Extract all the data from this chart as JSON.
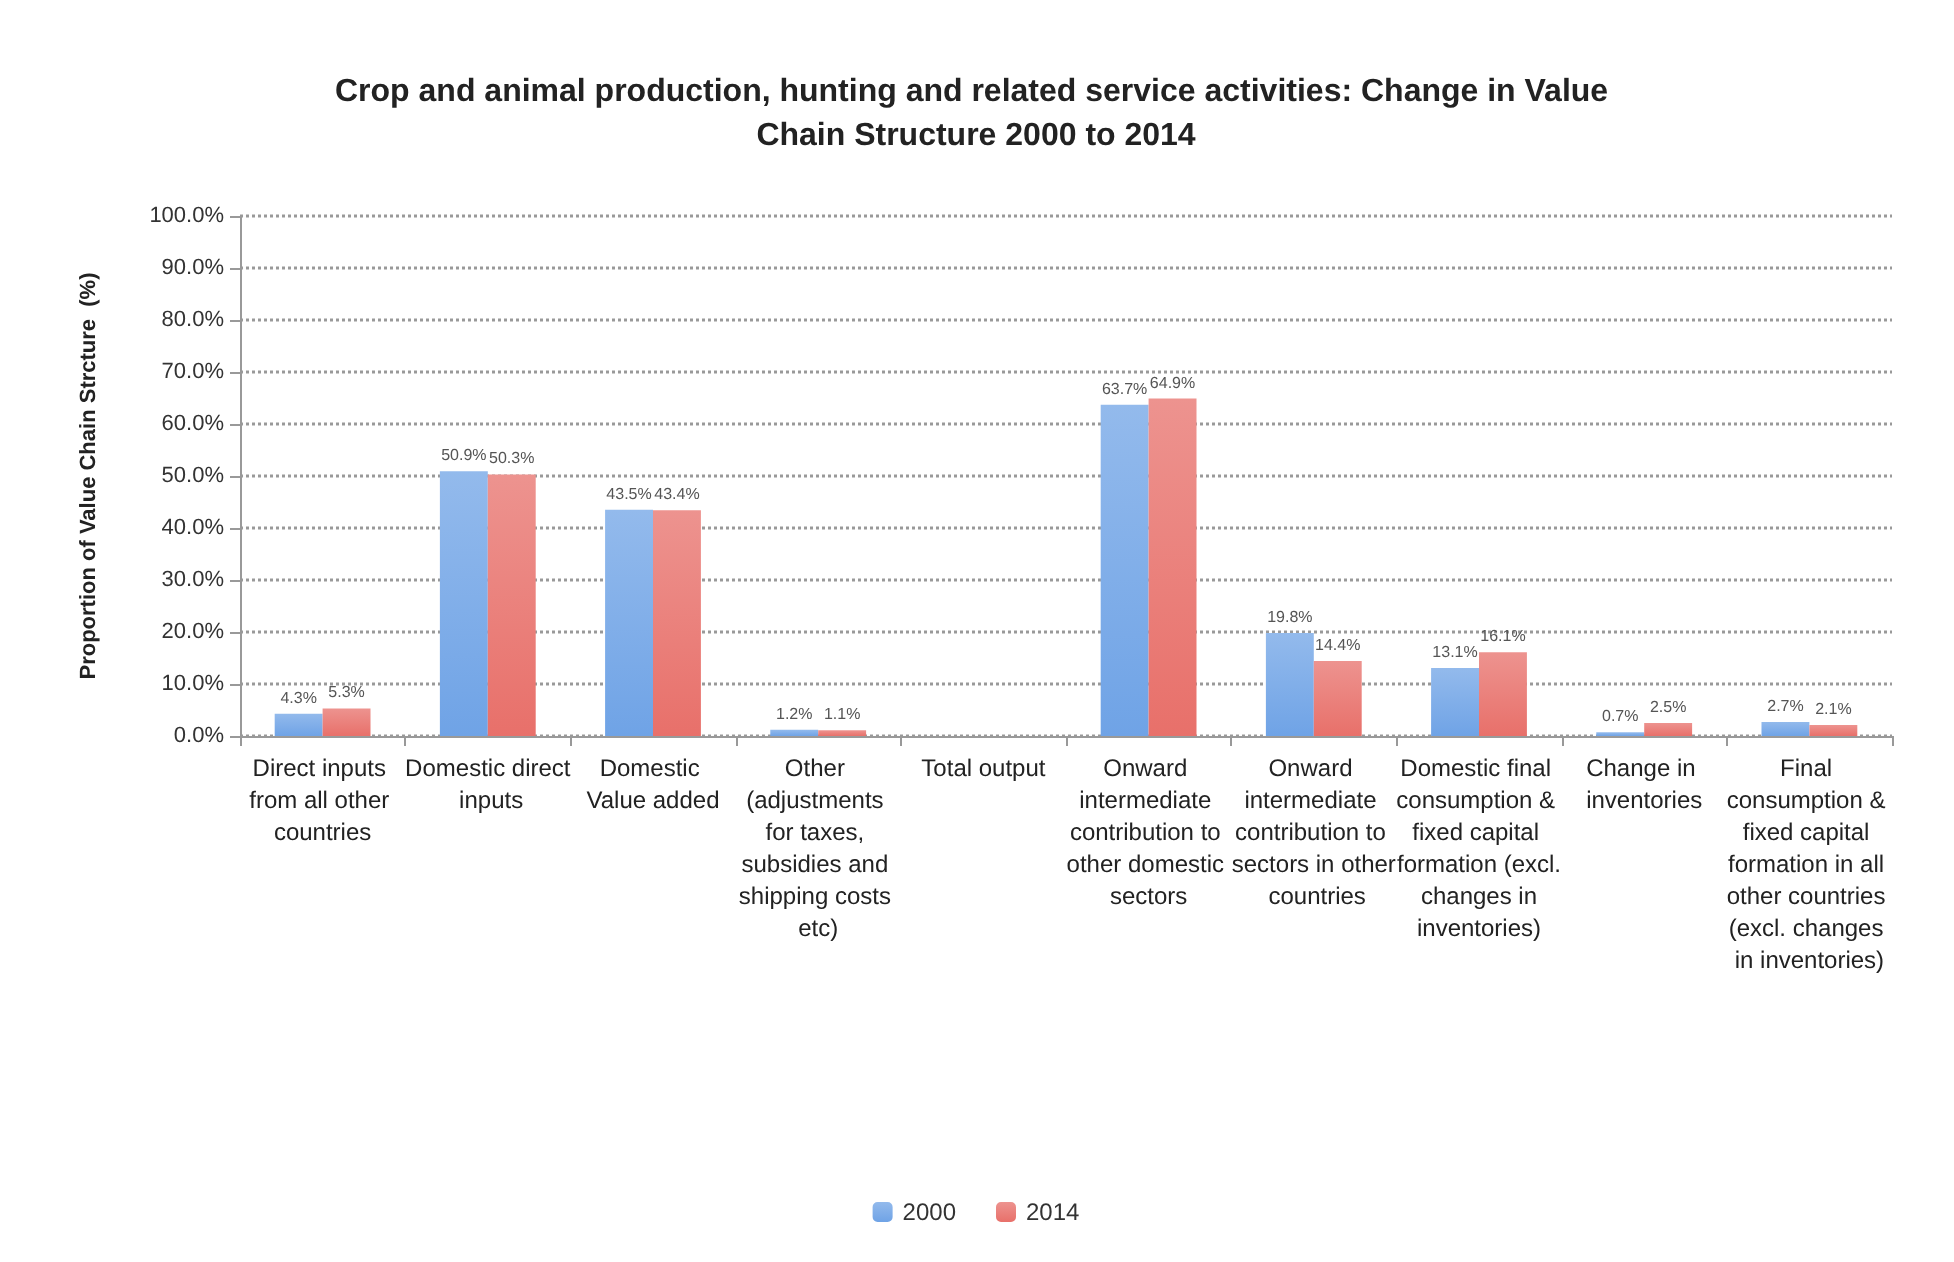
{
  "chart_data": {
    "type": "bar",
    "title": "Crop and animal production, hunting and related service activities: Change in Value Chain Structure 2000 to 2014",
    "ylabel": "Proportion of Value Chain Strcture  (%)",
    "categories": [
      "Direct inputs from all other countries",
      "Domestic direct inputs",
      "Domestic Value added",
      "Other (adjustments for taxes, subsidies and shipping costs etc)",
      "Total output",
      "Onward intermediate contribution to other domestic sectors",
      "Onward intermediate contribution to sectors in other countries",
      "Domestic final consumption & fixed capital formation (excl. changes in inventories)",
      "Change in inventories",
      "Final consumption & fixed capital formation in all other countries (excl. changes in inventories)"
    ],
    "series": [
      {
        "name": "2000",
        "color": "#6fa3e6",
        "values": [
          4.3,
          50.9,
          43.5,
          1.2,
          null,
          63.7,
          19.8,
          13.1,
          0.7,
          2.7
        ],
        "value_labels": [
          "4.3%",
          "50.9%",
          "43.5%",
          "1.2%",
          null,
          "63.7%",
          "19.8%",
          "13.1%",
          "0.7%",
          "2.7%"
        ]
      },
      {
        "name": "2014",
        "color": "#e8706a",
        "values": [
          5.3,
          50.3,
          43.4,
          1.1,
          null,
          64.9,
          14.4,
          16.1,
          2.5,
          2.1
        ],
        "value_labels": [
          "5.3%",
          "50.3%",
          "43.4%",
          "1.1%",
          null,
          "64.9%",
          "14.4%",
          "16.1%",
          "2.5%",
          "2.1%"
        ]
      }
    ],
    "ylim": [
      0,
      100
    ],
    "yticks": [
      {
        "value": 0,
        "label": "0.0%"
      },
      {
        "value": 10,
        "label": "10.0%"
      },
      {
        "value": 20,
        "label": "20.0%"
      },
      {
        "value": 30,
        "label": "30.0%"
      },
      {
        "value": 40,
        "label": "40.0%"
      },
      {
        "value": 50,
        "label": "50.0%"
      },
      {
        "value": 60,
        "label": "60.0%"
      },
      {
        "value": 70,
        "label": "70.0%"
      },
      {
        "value": 80,
        "label": "80.0%"
      },
      {
        "value": 90,
        "label": "90.0%"
      },
      {
        "value": 100,
        "label": "100.0%"
      }
    ],
    "grid": "y",
    "legend": "bottom"
  }
}
